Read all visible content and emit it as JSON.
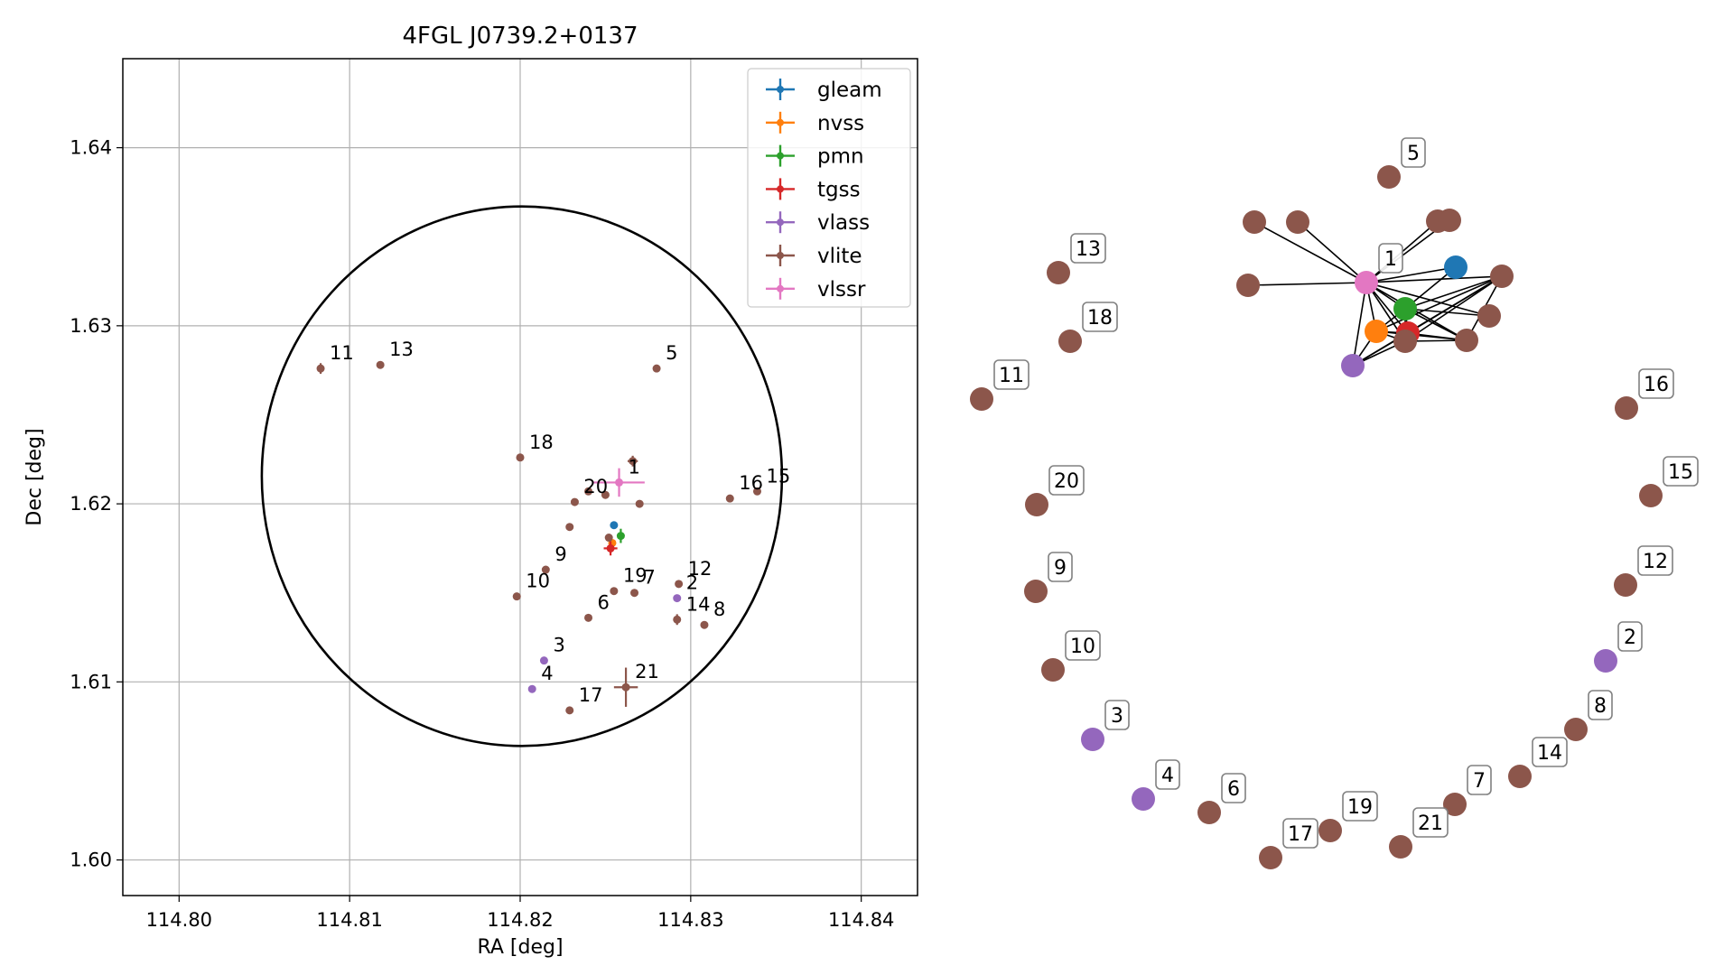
{
  "chart_data": [
    {
      "type": "scatter",
      "title": "4FGL J0739.2+0137",
      "xlabel": "RA [deg]",
      "ylabel": "Dec [deg]",
      "xlim": [
        114.7967,
        114.8433
      ],
      "ylim": [
        1.598,
        1.645
      ],
      "xticks": [
        "114.80",
        "114.81",
        "114.82",
        "114.83",
        "114.84"
      ],
      "xtick_values": [
        114.8,
        114.81,
        114.82,
        114.83,
        114.84
      ],
      "yticks": [
        "1.60",
        "1.61",
        "1.62",
        "1.63",
        "1.64"
      ],
      "ytick_values": [
        1.6,
        1.61,
        1.62,
        1.63,
        1.64
      ],
      "grid": true,
      "legend_position": "top-right",
      "ellipse": {
        "ra_center": 114.8201,
        "dec_center": 1.62155,
        "ra_radius": 0.01525,
        "dec_radius": 0.01515,
        "color": "#000000"
      },
      "series": [
        {
          "name": "gleam",
          "color": "#1f77b4",
          "points": [
            {
              "ra": 114.8255,
              "dec": 1.6188,
              "label": "",
              "ra_err": 0.0002,
              "dec_err": 0.0001
            }
          ]
        },
        {
          "name": "nvss",
          "color": "#ff7f0e",
          "points": [
            {
              "ra": 114.8254,
              "dec": 1.6178,
              "label": "",
              "ra_err": 0.0001,
              "dec_err": 0.0001
            }
          ]
        },
        {
          "name": "pmn",
          "color": "#2ca02c",
          "points": [
            {
              "ra": 114.8259,
              "dec": 1.6182,
              "label": "",
              "ra_err": 0.0002,
              "dec_err": 0.0004
            }
          ]
        },
        {
          "name": "tgss",
          "color": "#d62728",
          "points": [
            {
              "ra": 114.8253,
              "dec": 1.6175,
              "label": "",
              "ra_err": 0.0004,
              "dec_err": 0.0004
            }
          ]
        },
        {
          "name": "vlass",
          "color": "#9467bd",
          "points": [
            {
              "ra": 114.8292,
              "dec": 1.6147,
              "label": "2",
              "ra_err": 0,
              "dec_err": 0
            },
            {
              "ra": 114.8214,
              "dec": 1.6112,
              "label": "3",
              "ra_err": 0,
              "dec_err": 0
            },
            {
              "ra": 114.8207,
              "dec": 1.6096,
              "label": "4",
              "ra_err": 0,
              "dec_err": 0
            }
          ]
        },
        {
          "name": "vlite",
          "color": "#8c564b",
          "points": [
            {
              "ra": 114.8266,
              "dec": 1.6224,
              "label": "",
              "ra_err": 0.0003,
              "dec_err": 0.0003
            },
            {
              "ra": 114.828,
              "dec": 1.6276,
              "label": "5",
              "ra_err": 0,
              "dec_err": 0
            },
            {
              "ra": 114.824,
              "dec": 1.6136,
              "label": "6",
              "ra_err": 0,
              "dec_err": 0
            },
            {
              "ra": 114.8267,
              "dec": 1.615,
              "label": "7",
              "ra_err": 0,
              "dec_err": 0
            },
            {
              "ra": 114.8308,
              "dec": 1.6132,
              "label": "8",
              "ra_err": 0,
              "dec_err": 0
            },
            {
              "ra": 114.8215,
              "dec": 1.6163,
              "label": "9",
              "ra_err": 0.0002,
              "dec_err": 0.0002
            },
            {
              "ra": 114.8198,
              "dec": 1.6148,
              "label": "10",
              "ra_err": 0.0002,
              "dec_err": 0.0002
            },
            {
              "ra": 114.8083,
              "dec": 1.6276,
              "label": "11",
              "ra_err": 0.0002,
              "dec_err": 0.0003
            },
            {
              "ra": 114.8293,
              "dec": 1.6155,
              "label": "12",
              "ra_err": 0,
              "dec_err": 0
            },
            {
              "ra": 114.8118,
              "dec": 1.6278,
              "label": "13",
              "ra_err": 0,
              "dec_err": 0
            },
            {
              "ra": 114.8292,
              "dec": 1.6135,
              "label": "14",
              "ra_err": 0.0002,
              "dec_err": 0.0003
            },
            {
              "ra": 114.8339,
              "dec": 1.6207,
              "label": "15",
              "ra_err": 0,
              "dec_err": 0
            },
            {
              "ra": 114.8323,
              "dec": 1.6203,
              "label": "16",
              "ra_err": 0,
              "dec_err": 0
            },
            {
              "ra": 114.8229,
              "dec": 1.6084,
              "label": "17",
              "ra_err": 0,
              "dec_err": 0
            },
            {
              "ra": 114.82,
              "dec": 1.6226,
              "label": "18",
              "ra_err": 0,
              "dec_err": 0
            },
            {
              "ra": 114.8255,
              "dec": 1.6151,
              "label": "19",
              "ra_err": 0,
              "dec_err": 0
            },
            {
              "ra": 114.8232,
              "dec": 1.6201,
              "label": "20",
              "ra_err": 0,
              "dec_err": 0
            },
            {
              "ra": 114.8262,
              "dec": 1.6097,
              "label": "21",
              "ra_err": 0.0007,
              "dec_err": 0.0011
            },
            {
              "ra": 114.824,
              "dec": 1.6207,
              "label": "",
              "ra_err": 0,
              "dec_err": 0
            },
            {
              "ra": 114.825,
              "dec": 1.6205,
              "label": "",
              "ra_err": 0,
              "dec_err": 0
            },
            {
              "ra": 114.827,
              "dec": 1.62,
              "label": "",
              "ra_err": 0,
              "dec_err": 0
            },
            {
              "ra": 114.8229,
              "dec": 1.6187,
              "label": "",
              "ra_err": 0,
              "dec_err": 0
            },
            {
              "ra": 114.8252,
              "dec": 1.6181,
              "label": "",
              "ra_err": 0,
              "dec_err": 0
            }
          ]
        },
        {
          "name": "vlssr",
          "color": "#e377c2",
          "points": [
            {
              "ra": 114.8258,
              "dec": 1.6212,
              "label": "1",
              "ra_err": 0.0015,
              "dec_err": 0.0008
            }
          ]
        }
      ]
    },
    {
      "type": "network",
      "nodes": [
        {
          "label": "",
          "catalog": "gleam",
          "color": "#1f77b4"
        },
        {
          "label": "",
          "catalog": "nvss",
          "color": "#ff7f0e"
        },
        {
          "label": "",
          "catalog": "pmn",
          "color": "#2ca02c"
        },
        {
          "label": "",
          "catalog": "tgss",
          "color": "#d62728"
        },
        {
          "label": "1",
          "catalog": "vlssr",
          "color": "#e377c2"
        },
        {
          "label": "",
          "catalog": "vlass",
          "color": "#9467bd"
        },
        {
          "label": "",
          "catalog": "vlite",
          "color": "#8c564b"
        },
        {
          "label": "",
          "catalog": "vlite",
          "color": "#8c564b"
        },
        {
          "label": "",
          "catalog": "vlite",
          "color": "#8c564b"
        },
        {
          "label": "",
          "catalog": "vlite",
          "color": "#8c564b"
        },
        {
          "label": "",
          "catalog": "vlite",
          "color": "#8c564b"
        },
        {
          "label": "",
          "catalog": "vlite",
          "color": "#8c564b"
        },
        {
          "label": "",
          "catalog": "vlite",
          "color": "#8c564b"
        },
        {
          "label": "",
          "catalog": "vlite",
          "color": "#8c564b"
        },
        {
          "label": "",
          "catalog": "vlite",
          "color": "#8c564b"
        },
        {
          "label": "5",
          "catalog": "vlite",
          "color": "#8c564b"
        },
        {
          "label": "13",
          "catalog": "vlite",
          "color": "#8c564b"
        },
        {
          "label": "18",
          "catalog": "vlite",
          "color": "#8c564b"
        },
        {
          "label": "11",
          "catalog": "vlite",
          "color": "#8c564b"
        },
        {
          "label": "20",
          "catalog": "vlite",
          "color": "#8c564b"
        },
        {
          "label": "9",
          "catalog": "vlite",
          "color": "#8c564b"
        },
        {
          "label": "10",
          "catalog": "vlite",
          "color": "#8c564b"
        },
        {
          "label": "3",
          "catalog": "vlass",
          "color": "#9467bd"
        },
        {
          "label": "4",
          "catalog": "vlass",
          "color": "#9467bd"
        },
        {
          "label": "6",
          "catalog": "vlite",
          "color": "#8c564b"
        },
        {
          "label": "17",
          "catalog": "vlite",
          "color": "#8c564b"
        },
        {
          "label": "19",
          "catalog": "vlite",
          "color": "#8c564b"
        },
        {
          "label": "21",
          "catalog": "vlite",
          "color": "#8c564b"
        },
        {
          "label": "7",
          "catalog": "vlite",
          "color": "#8c564b"
        },
        {
          "label": "14",
          "catalog": "vlite",
          "color": "#8c564b"
        },
        {
          "label": "8",
          "catalog": "vlite",
          "color": "#8c564b"
        },
        {
          "label": "2",
          "catalog": "vlass",
          "color": "#9467bd"
        },
        {
          "label": "12",
          "catalog": "vlite",
          "color": "#8c564b"
        },
        {
          "label": "15",
          "catalog": "vlite",
          "color": "#8c564b"
        },
        {
          "label": "16",
          "catalog": "vlite",
          "color": "#8c564b"
        }
      ],
      "edges": [
        [
          4,
          0
        ],
        [
          4,
          1
        ],
        [
          4,
          2
        ],
        [
          4,
          3
        ],
        [
          4,
          5
        ],
        [
          4,
          6
        ],
        [
          4,
          7
        ],
        [
          4,
          8
        ],
        [
          4,
          9
        ],
        [
          4,
          10
        ],
        [
          4,
          11
        ],
        [
          4,
          12
        ],
        [
          4,
          13
        ],
        [
          4,
          14
        ],
        [
          1,
          2
        ],
        [
          1,
          3
        ],
        [
          1,
          5
        ],
        [
          1,
          12
        ],
        [
          1,
          13
        ],
        [
          1,
          14
        ],
        [
          2,
          3
        ],
        [
          2,
          11
        ],
        [
          2,
          12
        ],
        [
          2,
          13
        ],
        [
          2,
          14
        ],
        [
          2,
          0
        ],
        [
          3,
          12
        ],
        [
          3,
          13
        ],
        [
          3,
          14
        ],
        [
          3,
          5
        ],
        [
          5,
          12
        ],
        [
          5,
          14
        ],
        [
          12,
          13
        ],
        [
          12,
          14
        ],
        [
          13,
          14
        ]
      ]
    }
  ]
}
